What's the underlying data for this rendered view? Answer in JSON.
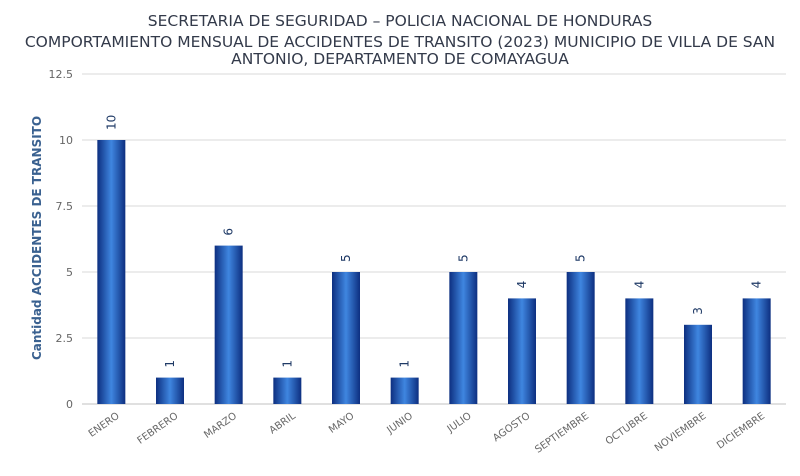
{
  "chart_data": {
    "type": "bar",
    "title_lines": [
      "SECRETARIA DE SEGURIDAD – POLICIA NACIONAL DE HONDURAS",
      "COMPORTAMIENTO MENSUAL DE ACCIDENTES DE TRANSITO (2023) MUNICIPIO DE VILLA DE SAN",
      "ANTONIO, DEPARTAMENTO DE COMAYAGUA"
    ],
    "xlabel": "",
    "ylabel": "Cantidad ACCIDENTES DE TRANSITO",
    "categories": [
      "ENERO",
      "FEBRERO",
      "MARZO",
      "ABRIL",
      "MAYO",
      "JUNIO",
      "JULIO",
      "AGOSTO",
      "SEPTIEMBRE",
      "OCTUBRE",
      "NOVIEMBRE",
      "DICIEMBRE"
    ],
    "values": [
      10,
      1,
      6,
      1,
      5,
      1,
      5,
      4,
      5,
      4,
      3,
      4
    ],
    "ylim": [
      0,
      12.5
    ],
    "yticks": [
      "0",
      "2.5",
      "5",
      "7.5",
      "10",
      "12.5"
    ],
    "grid": true,
    "bar_color": "#1e5bb8",
    "bar_color_dark": "#0d2f80",
    "bar_color_light": "#3f86e0",
    "grid_color": "#d9d9d9",
    "axis_color": "#c0c0c0"
  }
}
